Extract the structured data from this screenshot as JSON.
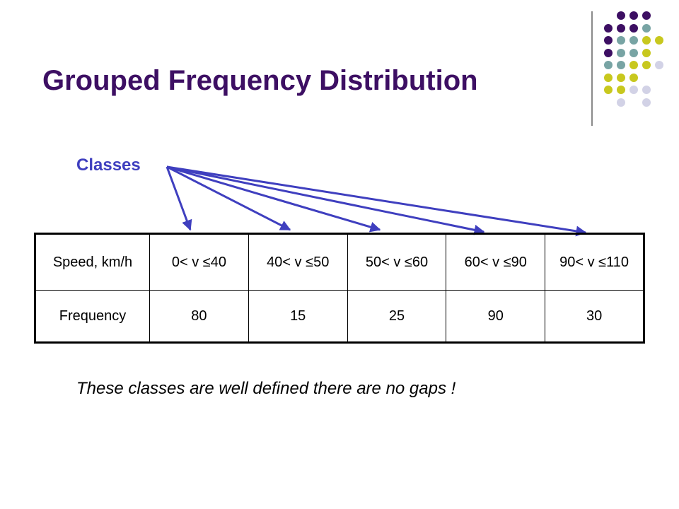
{
  "slide": {
    "title": "Grouped Frequency Distribution",
    "classes_label": "Classes",
    "note": "These classes are well defined there are no gaps !"
  },
  "table": {
    "rows": [
      [
        "Speed, km/h",
        "0< v ≤40",
        "40< v ≤50",
        "50< v ≤60",
        "60< v ≤90",
        "90< v ≤110"
      ],
      [
        "Frequency",
        "80",
        "15",
        "25",
        "90",
        "30"
      ]
    ]
  },
  "colors": {
    "title": "#3d0f63",
    "classes_label": "#3f3fbf",
    "arrow": "#3f3fbf",
    "dot_purple": "#3d0f63",
    "dot_teal": "#78a4a4",
    "dot_yellow": "#c8c81e",
    "dot_lavender": "#d2d2e6"
  }
}
